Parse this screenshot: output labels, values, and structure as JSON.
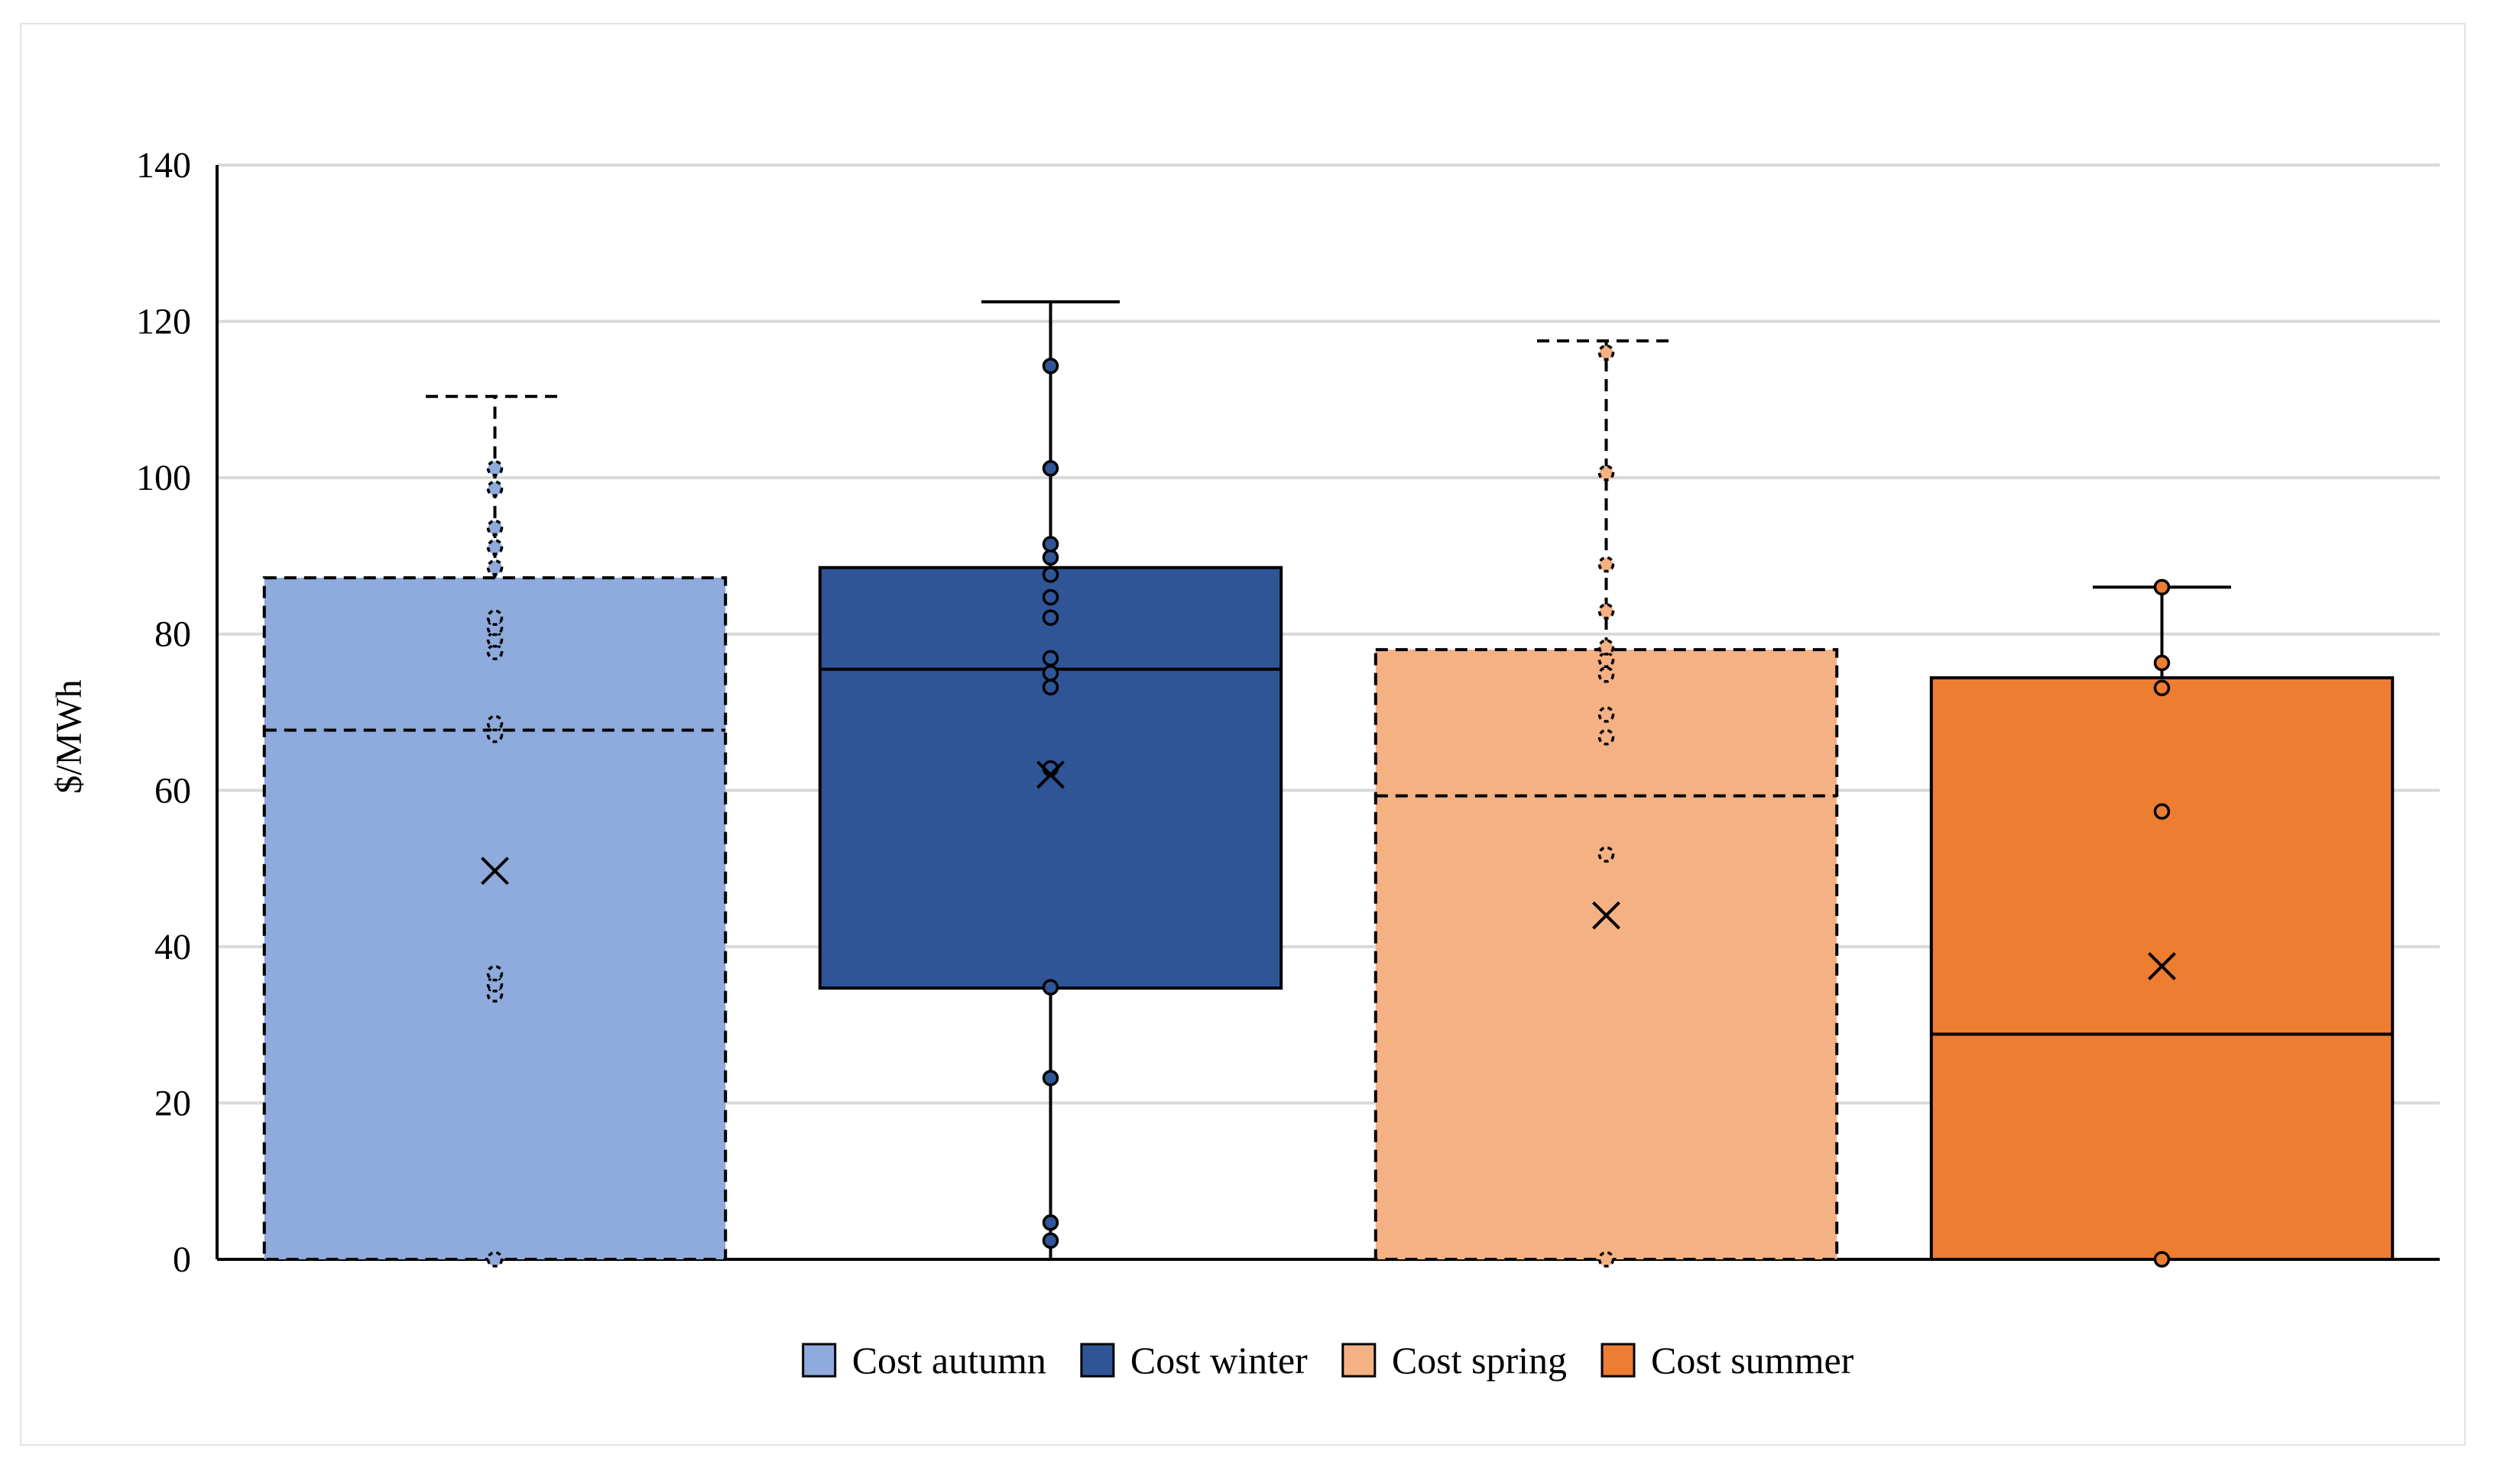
{
  "chart_data": {
    "type": "boxplot",
    "title": "",
    "xlabel": "",
    "ylabel": "$/MWh",
    "ylim": [
      0,
      140
    ],
    "yticks": [
      0,
      20,
      40,
      60,
      80,
      100,
      120,
      140
    ],
    "grid": true,
    "legend_position": "bottom",
    "series": [
      {
        "name": "Cost autumn",
        "color": "#8faadc",
        "stroke_style": "dashed",
        "whisker_min": 0,
        "q1": 0,
        "median": 67.7,
        "q3": 87.2,
        "whisker_max": 110.4,
        "mean": 49.7,
        "points": [
          0,
          33.9,
          35.2,
          36.6,
          67.1,
          68.6,
          77.7,
          79.3,
          80.8,
          82.1,
          88.5,
          91.1,
          93.6,
          98.6,
          101.2
        ]
      },
      {
        "name": "Cost winter",
        "color": "#2f5597",
        "stroke_style": "solid",
        "whisker_min": 0,
        "q1": 34.7,
        "median": 75.5,
        "q3": 88.5,
        "whisker_max": 122.5,
        "mean": 62,
        "points": [
          2.4,
          4.7,
          23.2,
          34.8,
          62.8,
          73.2,
          75,
          76.9,
          82.1,
          84.7,
          87.6,
          89.8,
          91.5,
          101.2,
          114.3
        ]
      },
      {
        "name": "Cost spring",
        "color": "#f4b183",
        "stroke_style": "dashed",
        "whisker_min": 0,
        "q1": 0,
        "median": 59.3,
        "q3": 78,
        "whisker_max": 117.5,
        "mean": 44,
        "points": [
          0,
          51.8,
          66.8,
          69.7,
          74.8,
          76.7,
          78.3,
          82.9,
          88.9,
          100.6,
          116
        ]
      },
      {
        "name": "Cost summer",
        "color": "#ed7d31",
        "stroke_style": "solid",
        "whisker_min": 0,
        "q1": 0,
        "median": 28.8,
        "q3": 74.4,
        "whisker_max": 86,
        "mean": 37.5,
        "points": [
          0,
          57.3,
          73.1,
          76.3,
          86
        ]
      }
    ]
  }
}
